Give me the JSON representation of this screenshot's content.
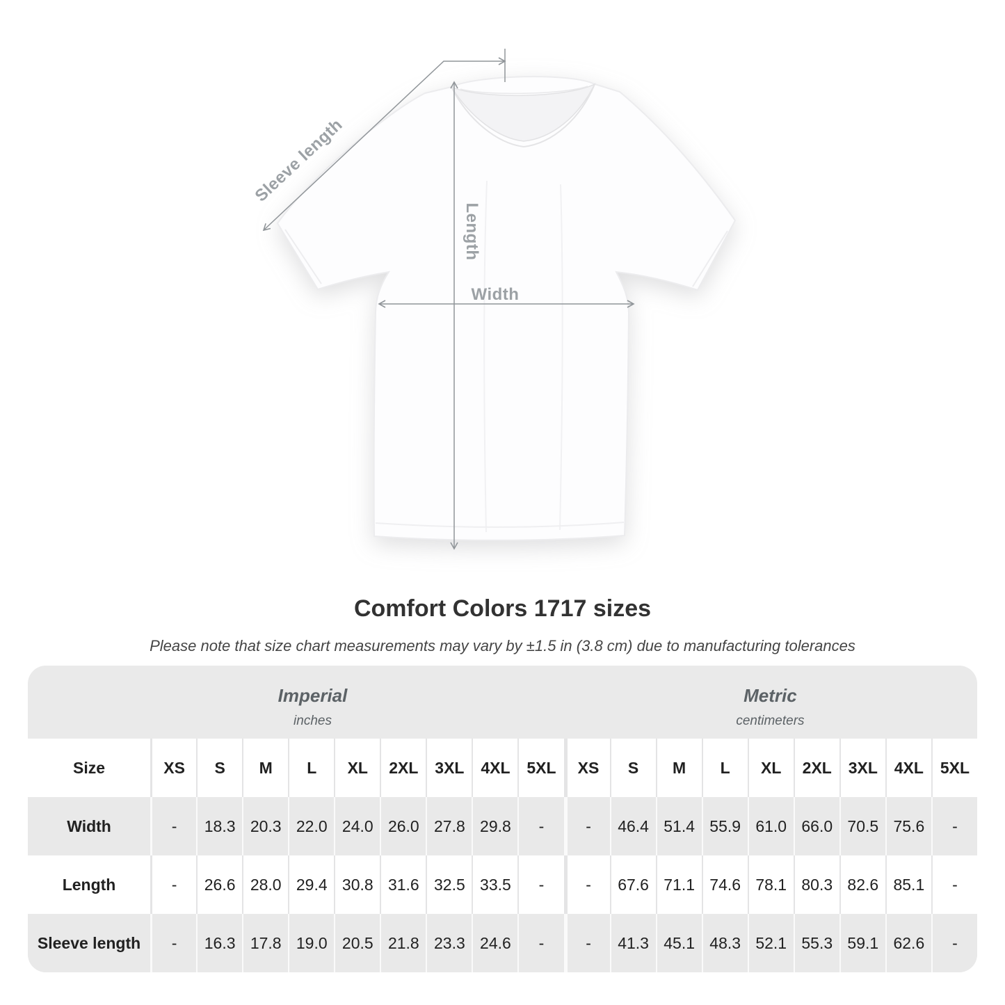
{
  "diagram": {
    "sleeve_label": "Sleeve length",
    "length_label": "Length",
    "width_label": "Width"
  },
  "heading": {
    "title": "Comfort Colors 1717 sizes",
    "subtitle": "Please note that size chart measurements may vary by ±1.5 in (3.8 cm) due to manufacturing tolerances"
  },
  "size_table": {
    "groups": [
      {
        "name": "Imperial",
        "unit": "inches"
      },
      {
        "name": "Metric",
        "unit": "centimeters"
      }
    ],
    "size_header": "Size",
    "sizes": [
      "XS",
      "S",
      "M",
      "L",
      "XL",
      "2XL",
      "3XL",
      "4XL",
      "5XL"
    ],
    "rows": [
      {
        "label": "Width",
        "imperial": [
          "-",
          "18.3",
          "20.3",
          "22.0",
          "24.0",
          "26.0",
          "27.8",
          "29.8",
          "-"
        ],
        "metric": [
          "-",
          "46.4",
          "51.4",
          "55.9",
          "61.0",
          "66.0",
          "70.5",
          "75.6",
          "-"
        ]
      },
      {
        "label": "Length",
        "imperial": [
          "-",
          "26.6",
          "28.0",
          "29.4",
          "30.8",
          "31.6",
          "32.5",
          "33.5",
          "-"
        ],
        "metric": [
          "-",
          "67.6",
          "71.1",
          "74.6",
          "78.1",
          "80.3",
          "82.6",
          "85.1",
          "-"
        ]
      },
      {
        "label": "Sleeve length",
        "imperial": [
          "-",
          "16.3",
          "17.8",
          "19.0",
          "20.5",
          "21.8",
          "23.3",
          "24.6",
          "-"
        ],
        "metric": [
          "-",
          "41.3",
          "45.1",
          "48.3",
          "52.1",
          "55.3",
          "59.1",
          "62.6",
          "-"
        ]
      }
    ]
  },
  "chart_data": {
    "type": "table",
    "title": "Comfort Colors 1717 sizes",
    "note": "Measurements may vary by ±1.5 in (3.8 cm)",
    "columns": [
      "XS",
      "S",
      "M",
      "L",
      "XL",
      "2XL",
      "3XL",
      "4XL",
      "5XL"
    ],
    "units": {
      "imperial": "inches",
      "metric": "centimeters"
    },
    "rows": [
      {
        "measurement": "Width",
        "imperial_in": [
          null,
          18.3,
          20.3,
          22.0,
          24.0,
          26.0,
          27.8,
          29.8,
          null
        ],
        "metric_cm": [
          null,
          46.4,
          51.4,
          55.9,
          61.0,
          66.0,
          70.5,
          75.6,
          null
        ]
      },
      {
        "measurement": "Length",
        "imperial_in": [
          null,
          26.6,
          28.0,
          29.4,
          30.8,
          31.6,
          32.5,
          33.5,
          null
        ],
        "metric_cm": [
          null,
          67.6,
          71.1,
          74.6,
          78.1,
          80.3,
          82.6,
          85.1,
          null
        ]
      },
      {
        "measurement": "Sleeve length",
        "imperial_in": [
          null,
          16.3,
          17.8,
          19.0,
          20.5,
          21.8,
          23.3,
          24.6,
          null
        ],
        "metric_cm": [
          null,
          41.3,
          45.1,
          48.3,
          52.1,
          55.3,
          59.1,
          62.6,
          null
        ]
      }
    ]
  },
  "colors": {
    "measure_line": "#909599",
    "measure_label": "#9ca1a5",
    "box_bg": "#eaeaea",
    "row_gray": "#e9e9e9",
    "head_text": "#5c6266",
    "value_text": "#212121",
    "title_text": "#323232"
  }
}
